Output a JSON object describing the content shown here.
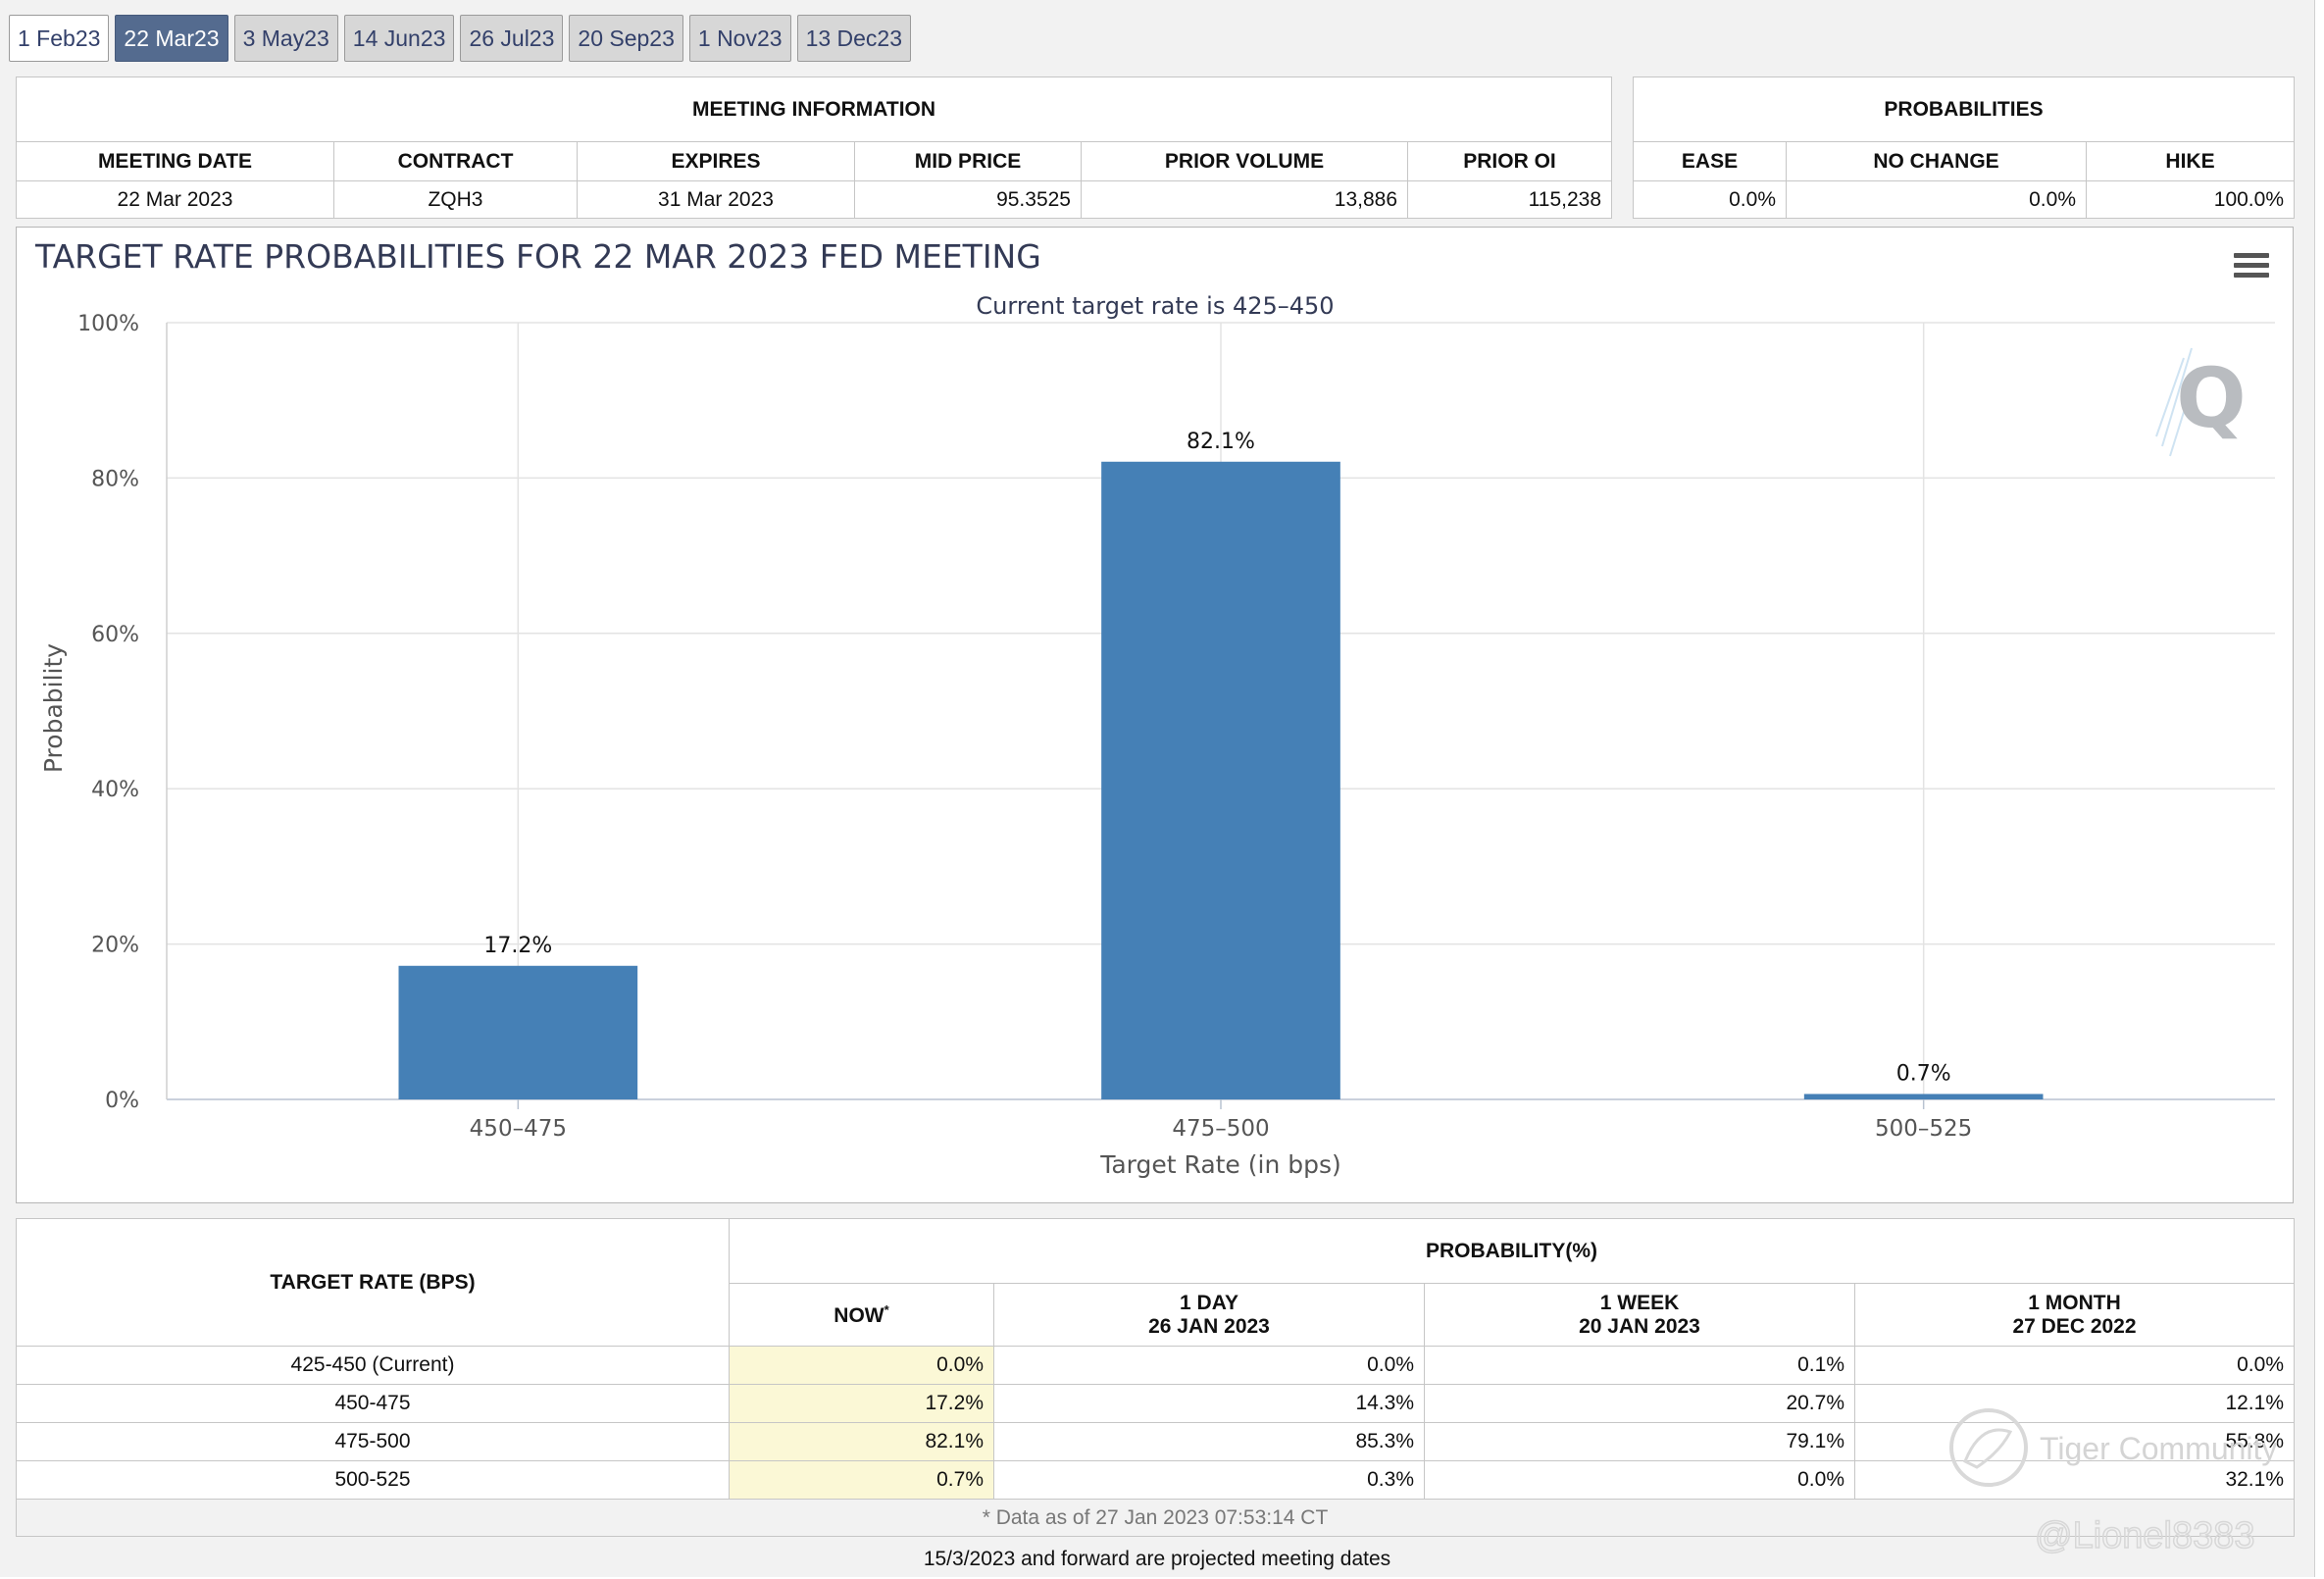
{
  "tabs": [
    "1 Feb23",
    "22 Mar23",
    "3 May23",
    "14 Jun23",
    "26 Jul23",
    "20 Sep23",
    "1 Nov23",
    "13 Dec23"
  ],
  "meeting_info": {
    "title": "MEETING INFORMATION",
    "headers": [
      "MEETING DATE",
      "CONTRACT",
      "EXPIRES",
      "MID PRICE",
      "PRIOR VOLUME",
      "PRIOR OI"
    ],
    "values": [
      "22 Mar 2023",
      "ZQH3",
      "31 Mar 2023",
      "95.3525",
      "13,886",
      "115,238"
    ]
  },
  "probabilities": {
    "title": "PROBABILITIES",
    "headers": [
      "EASE",
      "NO CHANGE",
      "HIKE"
    ],
    "values": [
      "0.0%",
      "0.0%",
      "100.0%"
    ]
  },
  "chart": {
    "title": "TARGET RATE PROBABILITIES FOR 22 MAR 2023 FED MEETING",
    "subtitle": "Current target rate is 425–450"
  },
  "chart_data": {
    "type": "bar",
    "title": "TARGET RATE PROBABILITIES FOR 22 MAR 2023 FED MEETING",
    "subtitle": "Current target rate is 425–450",
    "xlabel": "Target Rate (in bps)",
    "ylabel": "Probability",
    "categories": [
      "450–475",
      "475–500",
      "500–525"
    ],
    "values": [
      17.2,
      82.1,
      0.7
    ],
    "data_labels": [
      "17.2%",
      "82.1%",
      "0.7%"
    ],
    "ylim": [
      0,
      100
    ],
    "yticks": [
      "0%",
      "20%",
      "40%",
      "60%",
      "80%",
      "100%"
    ],
    "grid": true,
    "bar_color": "#4580b6"
  },
  "bottom_table": {
    "target_header": "TARGET RATE (BPS)",
    "prob_header": "PROBABILITY(%)",
    "cols": [
      {
        "line1": "NOW",
        "line2": "",
        "marker": "*"
      },
      {
        "line1": "1 DAY",
        "line2": "26 JAN 2023",
        "marker": ""
      },
      {
        "line1": "1 WEEK",
        "line2": "20 JAN 2023",
        "marker": ""
      },
      {
        "line1": "1 MONTH",
        "line2": "27 DEC 2022",
        "marker": ""
      }
    ],
    "rows": [
      {
        "rate": "425-450 (Current)",
        "now": "0.0%",
        "day": "0.0%",
        "week": "0.1%",
        "month": "0.0%"
      },
      {
        "rate": "450-475",
        "now": "17.2%",
        "day": "14.3%",
        "week": "20.7%",
        "month": "12.1%"
      },
      {
        "rate": "475-500",
        "now": "82.1%",
        "day": "85.3%",
        "week": "79.1%",
        "month": "55.8%"
      },
      {
        "rate": "500-525",
        "now": "0.7%",
        "day": "0.3%",
        "week": "0.0%",
        "month": "32.1%"
      }
    ],
    "footnote": "* Data as of 27 Jan 2023 07:53:14 CT"
  },
  "note": "15/3/2023 and forward are projected meeting dates",
  "watermark": {
    "brand": "Tiger Community",
    "handle": "@Lionel8383"
  }
}
